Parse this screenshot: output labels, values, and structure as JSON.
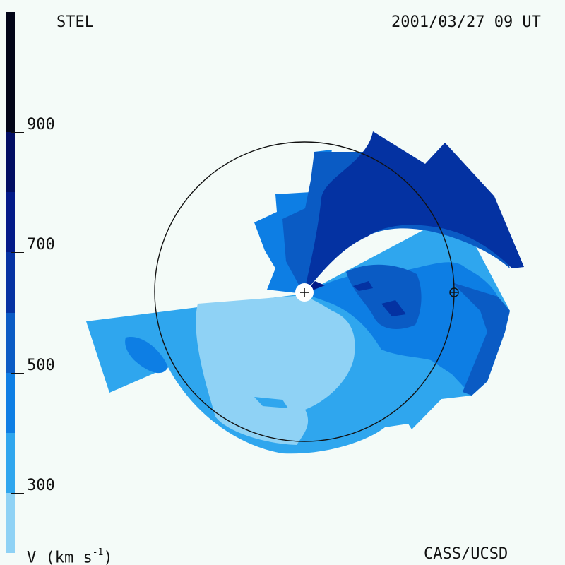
{
  "header": {
    "source": "STEL",
    "timestamp": "2001/03/27 09 UT"
  },
  "footer": {
    "unit_prefix": "V (km s",
    "unit_exponent": "-1",
    "unit_suffix": ")",
    "credit": "CASS/UCSD"
  },
  "colorbar": {
    "ticks": [
      "900",
      "700",
      "500",
      "300"
    ],
    "tick_values": [
      900,
      700,
      500,
      300
    ],
    "range": [
      200,
      1100
    ],
    "levels": [
      {
        "from": 200,
        "to": 300,
        "color": "#8fd2f5"
      },
      {
        "from": 300,
        "to": 400,
        "color": "#2fa6ee"
      },
      {
        "from": 400,
        "to": 500,
        "color": "#0d7ee4"
      },
      {
        "from": 500,
        "to": 600,
        "color": "#0a5bc4"
      },
      {
        "from": 600,
        "to": 700,
        "color": "#0432a2"
      },
      {
        "from": 700,
        "to": 800,
        "color": "#021a88"
      },
      {
        "from": 800,
        "to": 900,
        "color": "#010e63"
      },
      {
        "from": 900,
        "to": 1100,
        "color": "#020518"
      }
    ]
  },
  "map": {
    "sun_symbol": "+",
    "earth_symbol": "earth-orbit-marker"
  }
}
